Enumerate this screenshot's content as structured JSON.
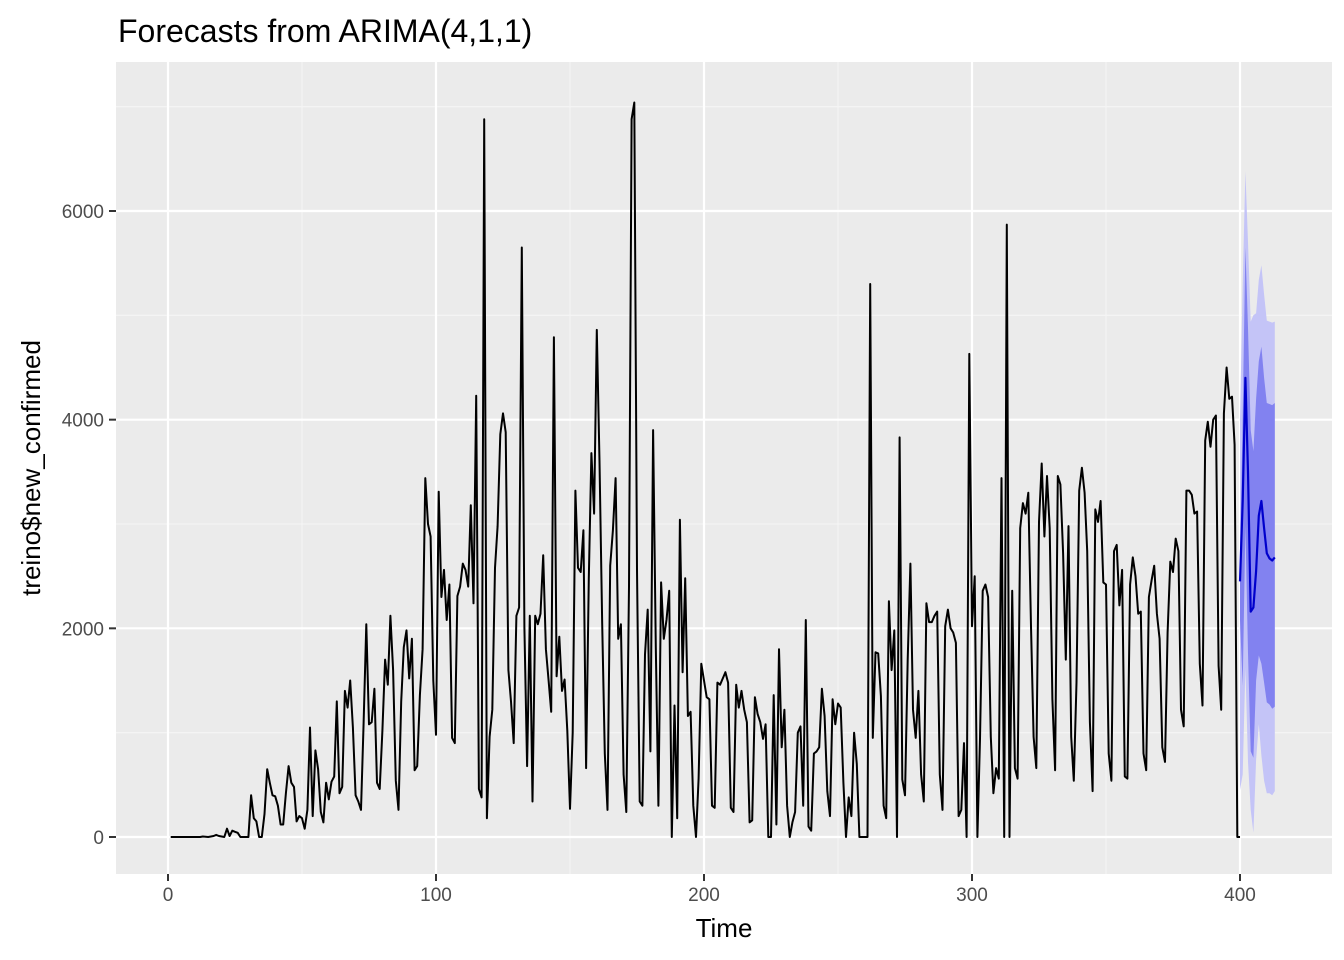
{
  "chart_data": {
    "type": "line",
    "title": "Forecasts from ARIMA(4,1,1)",
    "xlabel": "Time",
    "ylabel": "treino$new_confirmed",
    "xlim": [
      -10,
      413
    ],
    "ylim": [
      -330,
      7000
    ],
    "x_ticks": [
      0,
      100,
      200,
      300,
      400
    ],
    "x_tick_labels": [
      "0",
      "100",
      "200",
      "300",
      "400"
    ],
    "y_ticks": [
      0,
      2000,
      4000,
      6000
    ],
    "y_tick_labels": [
      "0",
      "2000",
      "4000",
      "6000"
    ],
    "grid": true,
    "legend": "none",
    "colors": {
      "panel": "#ebebeb",
      "grid_major": "#ffffff",
      "grid_minor": "#f5f5f5",
      "history": "#000000",
      "forecast_line": "#0000cc",
      "band_80": "#8282f0",
      "band_95": "#c4c4f7"
    },
    "series": [
      {
        "kind": "history",
        "x_start": 1,
        "values": [
          0,
          0,
          0,
          0,
          0,
          0,
          0,
          0,
          0,
          0,
          0,
          0,
          5,
          3,
          0,
          5,
          10,
          20,
          10,
          5,
          0,
          80,
          10,
          60,
          50,
          40,
          0,
          0,
          0,
          0,
          400,
          180,
          150,
          0,
          0,
          220,
          650,
          520,
          400,
          390,
          300,
          120,
          120,
          420,
          680,
          520,
          480,
          150,
          200,
          180,
          80,
          260,
          1050,
          200,
          830,
          650,
          240,
          140,
          520,
          360,
          530,
          580,
          1300,
          420,
          480,
          1400,
          1240,
          1500,
          1050,
          400,
          340,
          260,
          1090,
          2040,
          1080,
          1100,
          1420,
          520,
          460,
          1020,
          1700,
          1460,
          2120,
          1600,
          540,
          260,
          1300,
          1820,
          1980,
          1520,
          1900,
          640,
          680,
          1360,
          1800,
          3440,
          3000,
          2880,
          1500,
          980,
          3310,
          2300,
          2560,
          2080,
          2420,
          950,
          900,
          2310,
          2400,
          2620,
          2560,
          2400,
          3180,
          2240,
          4230,
          460,
          380,
          6880,
          180,
          960,
          1220,
          2580,
          2980,
          3860,
          4060,
          3880,
          1600,
          1300,
          900,
          2120,
          2200,
          5650,
          2010,
          680,
          2120,
          340,
          2120,
          2040,
          2140,
          2700,
          1800,
          1500,
          1200,
          4790,
          1540,
          1920,
          1400,
          1510,
          1020,
          270,
          1000,
          3320,
          2580,
          2540,
          2940,
          660,
          2480,
          3680,
          3100,
          4860,
          3600,
          2040,
          800,
          260,
          2600,
          2940,
          3440,
          1900,
          2040,
          600,
          240,
          2400,
          6880,
          7040,
          2560,
          340,
          300,
          1750,
          2180,
          820,
          3900,
          1820,
          300,
          2440,
          1900,
          2080,
          2360,
          0,
          1260,
          180,
          3040,
          1580,
          2480,
          1160,
          1200,
          300,
          0,
          560,
          1660,
          1500,
          1340,
          1320,
          300,
          280,
          1480,
          1460,
          1520,
          1580,
          1480,
          280,
          240,
          1460,
          1240,
          1400,
          1220,
          1100,
          140,
          160,
          1340,
          1180,
          1100,
          940,
          1080,
          0,
          0,
          1360,
          120,
          1800,
          860,
          1220,
          300,
          0,
          140,
          240,
          1000,
          1060,
          300,
          2080,
          100,
          60,
          800,
          820,
          860,
          1420,
          1160,
          440,
          200,
          1320,
          1080,
          1280,
          1240,
          520,
          0,
          380,
          200,
          1000,
          700,
          0,
          0,
          0,
          0,
          5300,
          950,
          1770,
          1760,
          1350,
          300,
          180,
          2260,
          1600,
          1980,
          0,
          3830,
          550,
          400,
          1700,
          2620,
          1220,
          950,
          1400,
          600,
          340,
          2240,
          2060,
          2060,
          2120,
          2160,
          600,
          260,
          2020,
          2180,
          2000,
          1960,
          1860,
          200,
          260,
          900,
          0,
          4630,
          2020,
          2500,
          0,
          940,
          2360,
          2420,
          2300,
          960,
          420,
          660,
          560,
          3440,
          0,
          5870,
          0,
          2360,
          660,
          560,
          2960,
          3200,
          3100,
          3300,
          2020,
          960,
          660,
          3020,
          3580,
          2880,
          3460,
          2960,
          1320,
          640,
          3460,
          3380,
          2720,
          1700,
          2980,
          960,
          540,
          1480,
          3320,
          3540,
          3300,
          2740,
          1100,
          440,
          3140,
          3020,
          3220,
          2440,
          2420,
          800,
          540,
          2740,
          2800,
          2220,
          2560,
          580,
          560,
          2420,
          2680,
          2500,
          2140,
          2160,
          800,
          640,
          2300,
          2460,
          2600,
          2140,
          1900,
          860,
          720,
          1960,
          2640,
          2540,
          2860,
          2740,
          1220,
          1060,
          3320,
          3320,
          3280,
          3100,
          3120,
          1660,
          1260,
          3800,
          3980,
          3740,
          4000,
          4040,
          1640,
          1220,
          4060,
          4500,
          4200,
          4220,
          3760,
          0,
          0
        ]
      },
      {
        "kind": "forecast",
        "x": [
          400,
          401,
          402,
          403,
          404,
          405,
          406,
          407,
          408,
          409,
          410,
          411,
          412,
          413
        ],
        "mean": [
          2450,
          3220,
          4400,
          3500,
          2160,
          2200,
          2550,
          3080,
          3220,
          2960,
          2720,
          2670,
          2650,
          2680
        ],
        "lo80": [
          2080,
          1450,
          2980,
          1760,
          820,
          760,
          1500,
          1740,
          1660,
          1480,
          1290,
          1270,
          1230,
          1250
        ],
        "hi80": [
          2700,
          4050,
          5650,
          4880,
          3900,
          3700,
          4200,
          4560,
          4700,
          4400,
          4160,
          4150,
          4140,
          4160
        ],
        "lo95": [
          450,
          600,
          1620,
          720,
          260,
          40,
          740,
          1080,
          780,
          540,
          420,
          420,
          400,
          440
        ],
        "hi95": [
          4000,
          5300,
          6380,
          5700,
          4940,
          5000,
          5020,
          5340,
          5480,
          5200,
          4950,
          4940,
          4930,
          4940
        ]
      }
    ]
  }
}
